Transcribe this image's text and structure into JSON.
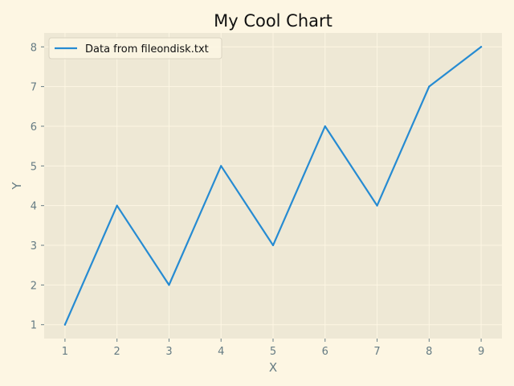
{
  "chart_data": {
    "type": "line",
    "title": "My Cool Chart",
    "xlabel": "X",
    "ylabel": "Y",
    "x": [
      1,
      2,
      3,
      4,
      5,
      6,
      7,
      8,
      9
    ],
    "series": [
      {
        "name": "Data from fileondisk.txt",
        "values": [
          1,
          4,
          2,
          5,
          3,
          6,
          4,
          7,
          8
        ]
      }
    ],
    "xlim": [
      0.6,
      9.4
    ],
    "ylim": [
      0.65,
      8.35
    ],
    "xticks": [
      "1",
      "2",
      "3",
      "4",
      "5",
      "6",
      "7",
      "8",
      "9"
    ],
    "yticks": [
      "1",
      "2",
      "3",
      "4",
      "5",
      "6",
      "7",
      "8"
    ],
    "grid": true,
    "legend_position": "top-left",
    "colors": {
      "page_background": "#fdf6e3",
      "plot_background": "#eee8d5",
      "grid": "#fdf6e3",
      "line": "#268bd2",
      "tick_text": "#657b83",
      "title_text": "#111111"
    }
  }
}
